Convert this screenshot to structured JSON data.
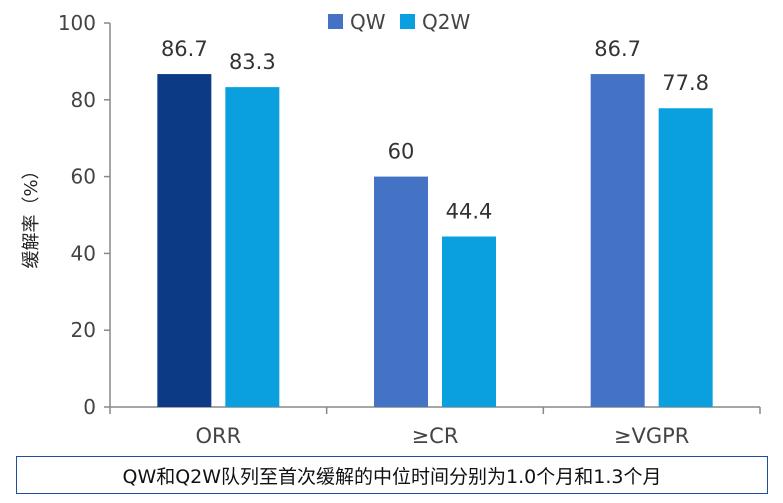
{
  "chart_data": {
    "type": "bar",
    "categories": [
      "ORR",
      "≥CR",
      "≥VGPR"
    ],
    "series": [
      {
        "name": "QW",
        "values": [
          86.7,
          60,
          86.7
        ],
        "color": "#4472c4"
      },
      {
        "name": "Q2W",
        "values": [
          83.3,
          44.4,
          77.8
        ],
        "color": "#0aa0e0"
      }
    ],
    "highlight_color": "#0d3a85",
    "ylabel": "缓解率（%）",
    "ylim": [
      0,
      100
    ],
    "yticks": [
      0,
      20,
      40,
      60,
      80,
      100
    ],
    "legend_position": "top",
    "grid": false,
    "data_labels": [
      "86.7",
      "83.3",
      "60",
      "44.4",
      "86.7",
      "77.8"
    ]
  },
  "caption": "QW和Q2W队列至首次缓解的中位时间分别为1.0个月和1.3个月"
}
